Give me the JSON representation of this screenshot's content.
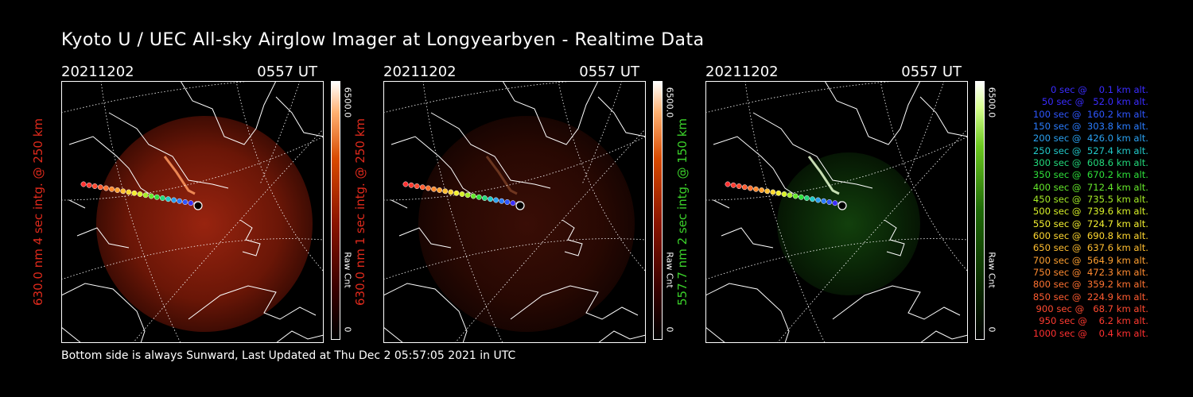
{
  "title": "Kyoto U / UEC All-sky Airglow Imager at Longyearbyen - Realtime Data",
  "footer": "Bottom side is always Sunward, Last Updated at Thu Dec  2 05:57:05 2021 in UTC",
  "panels": [
    {
      "date": "20211202",
      "time": "0557 UT",
      "ylabel": "630.0 nm 4 sec intg. @ 250 km",
      "ylabel_color": "#e02a1c",
      "cbar_max": "6500.0",
      "cbar_min": "0",
      "cbar_unit": "Raw Cnt",
      "scheme": "red",
      "brightness": "high"
    },
    {
      "date": "20211202",
      "time": "0557 UT",
      "ylabel": "630.0 nm 1 sec intg. @ 250 km",
      "ylabel_color": "#e02a1c",
      "cbar_max": "6500.0",
      "cbar_min": "0",
      "cbar_unit": "Raw Cnt",
      "scheme": "red",
      "brightness": "low"
    },
    {
      "date": "20211202",
      "time": "0557 UT",
      "ylabel": "557.7 nm 2 sec intg. @ 150 km",
      "ylabel_color": "#3bd12a",
      "cbar_max": "6500.0",
      "cbar_min": "0",
      "cbar_unit": "Raw Cnt",
      "scheme": "green",
      "brightness": "mid"
    }
  ],
  "legend": [
    {
      "text": "   0 sec @    0.1 km alt.",
      "color": "#3a2cff"
    },
    {
      "text": "  50 sec @   52.0 km alt.",
      "color": "#3a2cff"
    },
    {
      "text": " 100 sec @  160.2 km alt.",
      "color": "#2e56ff"
    },
    {
      "text": " 150 sec @  303.8 km alt.",
      "color": "#2a7cff"
    },
    {
      "text": " 200 sec @  426.0 km alt.",
      "color": "#2aa0f0"
    },
    {
      "text": " 250 sec @  527.4 km alt.",
      "color": "#22c8c8"
    },
    {
      "text": " 300 sec @  608.6 km alt.",
      "color": "#22d87a"
    },
    {
      "text": " 350 sec @  670.2 km alt.",
      "color": "#2ee03a"
    },
    {
      "text": " 400 sec @  712.4 km alt.",
      "color": "#64e82a"
    },
    {
      "text": " 450 sec @  735.5 km alt.",
      "color": "#a6ec26"
    },
    {
      "text": " 500 sec @  739.6 km alt.",
      "color": "#d8f028"
    },
    {
      "text": " 550 sec @  724.7 km alt.",
      "color": "#f4f030"
    },
    {
      "text": " 600 sec @  690.8 km alt.",
      "color": "#ffd830"
    },
    {
      "text": " 650 sec @  637.6 km alt.",
      "color": "#ffbe30"
    },
    {
      "text": " 700 sec @  564.9 km alt.",
      "color": "#ffa030"
    },
    {
      "text": " 750 sec @  472.3 km alt.",
      "color": "#ff8a30"
    },
    {
      "text": " 800 sec @  359.2 km alt.",
      "color": "#ff7230"
    },
    {
      "text": " 850 sec @  224.9 km alt.",
      "color": "#ff5c30"
    },
    {
      "text": " 900 sec @   68.7 km alt.",
      "color": "#ff4a30"
    },
    {
      "text": " 950 sec @    6.2 km alt.",
      "color": "#ff3a30"
    },
    {
      "text": "1000 sec @    0.4 km alt.",
      "color": "#ff3030"
    }
  ]
}
